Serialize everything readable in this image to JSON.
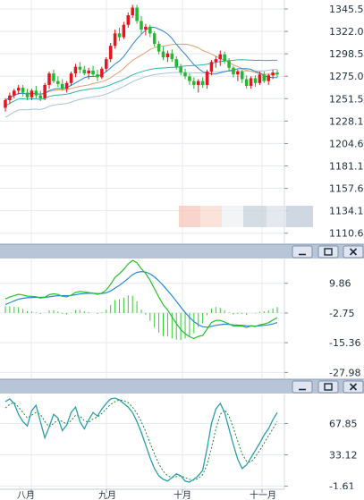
{
  "chart_data": [
    {
      "type": "candlestick",
      "panel": "price",
      "ylim": [
        1100,
        1355
      ],
      "yticks": [
        "1345.59",
        "1322.09",
        "1298.59",
        "1275.09",
        "1251.59",
        "1228.10",
        "1204.60",
        "1181.10",
        "1157.60",
        "1134.10",
        "1110.60"
      ],
      "ytick_values": [
        1345.59,
        1322.09,
        1298.59,
        1275.09,
        1251.59,
        1228.1,
        1204.6,
        1181.1,
        1157.6,
        1134.1,
        1110.6
      ],
      "colors": {
        "up": "#e8141c",
        "down": "#22b830",
        "ma_short": "#2e86d6",
        "ma_mid": "#e0a070",
        "ma_long1": "#29b7a6",
        "ma_long2": "#a8c4dc"
      },
      "candles": [
        [
          1242,
          1252,
          1238,
          1250
        ],
        [
          1250,
          1258,
          1246,
          1255
        ],
        [
          1255,
          1262,
          1252,
          1260
        ],
        [
          1260,
          1266,
          1256,
          1263
        ],
        [
          1263,
          1266,
          1254,
          1258
        ],
        [
          1258,
          1262,
          1250,
          1253
        ],
        [
          1253,
          1262,
          1250,
          1260
        ],
        [
          1260,
          1265,
          1252,
          1255
        ],
        [
          1255,
          1260,
          1249,
          1252
        ],
        [
          1252,
          1268,
          1250,
          1266
        ],
        [
          1266,
          1280,
          1262,
          1278
        ],
        [
          1278,
          1282,
          1268,
          1270
        ],
        [
          1270,
          1275,
          1264,
          1267
        ],
        [
          1267,
          1272,
          1260,
          1262
        ],
        [
          1262,
          1270,
          1258,
          1268
        ],
        [
          1268,
          1280,
          1265,
          1278
        ],
        [
          1278,
          1288,
          1274,
          1285
        ],
        [
          1285,
          1290,
          1278,
          1282
        ],
        [
          1282,
          1286,
          1276,
          1278
        ],
        [
          1278,
          1284,
          1272,
          1281
        ],
        [
          1281,
          1286,
          1275,
          1277
        ],
        [
          1277,
          1282,
          1270,
          1274
        ],
        [
          1274,
          1285,
          1272,
          1283
        ],
        [
          1283,
          1295,
          1280,
          1293
        ],
        [
          1293,
          1310,
          1290,
          1307
        ],
        [
          1307,
          1324,
          1304,
          1320
        ],
        [
          1320,
          1326,
          1312,
          1316
        ],
        [
          1316,
          1332,
          1314,
          1329
        ],
        [
          1329,
          1342,
          1326,
          1339
        ],
        [
          1339,
          1350,
          1336,
          1347
        ],
        [
          1347,
          1350,
          1330,
          1333
        ],
        [
          1333,
          1338,
          1320,
          1324
        ],
        [
          1324,
          1330,
          1318,
          1327
        ],
        [
          1327,
          1329,
          1316,
          1320
        ],
        [
          1320,
          1322,
          1306,
          1309
        ],
        [
          1309,
          1312,
          1298,
          1301
        ],
        [
          1301,
          1306,
          1292,
          1295
        ],
        [
          1295,
          1302,
          1290,
          1299
        ],
        [
          1299,
          1303,
          1290,
          1293
        ],
        [
          1293,
          1296,
          1282,
          1285
        ],
        [
          1285,
          1288,
          1276,
          1279
        ],
        [
          1279,
          1283,
          1272,
          1275
        ],
        [
          1275,
          1278,
          1266,
          1270
        ],
        [
          1270,
          1274,
          1262,
          1266
        ],
        [
          1266,
          1272,
          1258,
          1270
        ],
        [
          1270,
          1274,
          1263,
          1266
        ],
        [
          1266,
          1282,
          1262,
          1280
        ],
        [
          1280,
          1292,
          1276,
          1290
        ],
        [
          1290,
          1296,
          1284,
          1293
        ],
        [
          1293,
          1302,
          1286,
          1298
        ],
        [
          1298,
          1301,
          1288,
          1291
        ],
        [
          1291,
          1294,
          1280,
          1284
        ],
        [
          1284,
          1286,
          1274,
          1277
        ],
        [
          1277,
          1282,
          1270,
          1280
        ],
        [
          1280,
          1282,
          1268,
          1272
        ],
        [
          1272,
          1276,
          1262,
          1265
        ],
        [
          1265,
          1275,
          1262,
          1273
        ],
        [
          1273,
          1276,
          1264,
          1268
        ],
        [
          1268,
          1280,
          1266,
          1277
        ],
        [
          1277,
          1280,
          1268,
          1270
        ],
        [
          1270,
          1278,
          1266,
          1276
        ],
        [
          1276,
          1282,
          1272,
          1279
        ],
        [
          1279,
          1282,
          1274,
          1277
        ]
      ]
    },
    {
      "type": "macd",
      "panel": "indicator-1",
      "ylim": [
        -30.5,
        20
      ],
      "yticks": [
        "9.86",
        "-2.75",
        "-15.36",
        "-27.98"
      ],
      "ytick_values": [
        9.86,
        -2.75,
        -15.36,
        -27.98
      ],
      "colors": {
        "dif": "#22c22a",
        "dea": "#2e86d6",
        "hist": "#33cc33"
      },
      "dif": [
        3.2,
        4.0,
        4.6,
        5.2,
        4.9,
        4.4,
        4.3,
        4.1,
        3.6,
        3.9,
        5.0,
        5.4,
        5.1,
        4.3,
        4.1,
        4.8,
        6.0,
        6.4,
        6.1,
        5.9,
        5.6,
        5.2,
        5.7,
        7.0,
        9.4,
        12.4,
        13.9,
        15.8,
        18.1,
        19.6,
        18.6,
        16.0,
        14.0,
        11.1,
        7.5,
        4.0,
        0.7,
        -1.5,
        -4.4,
        -7.2,
        -9.8,
        -11.5,
        -12.8,
        -13.6,
        -12.7,
        -12.3,
        -9.6,
        -6.8,
        -5.9,
        -5.9,
        -6.6,
        -7.4,
        -8.3,
        -8.2,
        -8.3,
        -8.9,
        -8.2,
        -8.5,
        -7.8,
        -7.4,
        -6.9,
        -5.8,
        -4.7
      ],
      "dea": [
        0.8,
        1.6,
        2.4,
        3.1,
        3.5,
        3.7,
        3.8,
        3.9,
        3.9,
        3.9,
        4.1,
        4.4,
        4.6,
        4.6,
        4.6,
        4.7,
        5.0,
        5.3,
        5.5,
        5.6,
        5.6,
        5.5,
        5.5,
        5.8,
        6.6,
        7.8,
        9.0,
        10.4,
        11.9,
        13.5,
        14.5,
        14.8,
        14.6,
        13.9,
        12.6,
        10.9,
        8.9,
        6.8,
        4.6,
        2.2,
        -0.2,
        -2.5,
        -4.6,
        -6.4,
        -7.7,
        -8.6,
        -8.8,
        -8.4,
        -8.0,
        -7.7,
        -7.5,
        -7.6,
        -7.8,
        -7.9,
        -8.0,
        -8.2,
        -8.2,
        -8.3,
        -8.2,
        -8.0,
        -7.8,
        -7.4,
        -6.8
      ]
    },
    {
      "type": "line",
      "panel": "indicator-2",
      "ylim": [
        -5,
        100
      ],
      "yticks": [
        "67.85",
        "33.12",
        "-1.61"
      ],
      "ytick_values": [
        67.85,
        33.12,
        -1.61
      ],
      "colors": {
        "k": "#2a9fa8",
        "d": "#1f8a3a"
      },
      "k": [
        92,
        95,
        90,
        78,
        70,
        65,
        82,
        88,
        70,
        52,
        64,
        78,
        74,
        60,
        66,
        80,
        86,
        70,
        62,
        72,
        80,
        76,
        84,
        90,
        95,
        96,
        94,
        90,
        86,
        80,
        70,
        58,
        44,
        30,
        18,
        10,
        6,
        4,
        8,
        12,
        10,
        4,
        3,
        6,
        10,
        16,
        40,
        68,
        84,
        90,
        80,
        62,
        44,
        28,
        18,
        22,
        30,
        38,
        46,
        55,
        62,
        72,
        80
      ],
      "d": [
        85,
        89,
        91,
        86,
        80,
        74,
        77,
        80,
        78,
        70,
        64,
        68,
        72,
        70,
        67,
        71,
        77,
        76,
        71,
        69,
        73,
        75,
        79,
        84,
        89,
        92,
        94,
        93,
        91,
        86,
        79,
        70,
        59,
        46,
        34,
        23,
        15,
        10,
        8,
        9,
        10,
        8,
        6,
        5,
        7,
        11,
        22,
        41,
        62,
        78,
        83,
        76,
        63,
        48,
        34,
        26,
        25,
        31,
        38,
        46,
        54,
        62,
        70
      ]
    }
  ],
  "x_axis": {
    "labels": [
      "八月",
      "九月",
      "十月",
      "十一月"
    ]
  },
  "panel_controls": [
    {
      "minimize": "minimize-icon",
      "restore": "restore-icon",
      "close": "close-icon"
    },
    {
      "minimize": "minimize-icon",
      "restore": "restore-icon",
      "close": "close-icon"
    }
  ]
}
